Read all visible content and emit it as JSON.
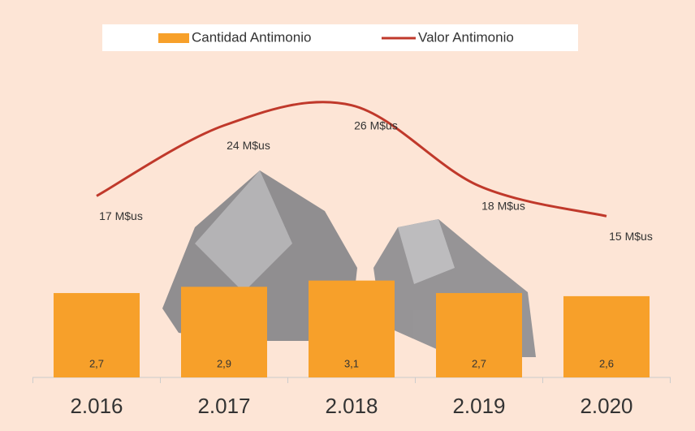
{
  "chart_data": {
    "type": "bar",
    "categories": [
      "2.016",
      "2.017",
      "2.018",
      "2.019",
      "2.020"
    ],
    "series": [
      {
        "name": "Cantidad Antimonio",
        "type": "bar",
        "color": "#f7a02a",
        "values": [
          2.7,
          2.9,
          3.1,
          2.7,
          2.6
        ],
        "value_labels": [
          "2,7",
          "2,9",
          "3,1",
          "2,7",
          "2,6"
        ]
      },
      {
        "name": "Valor Antimonio",
        "type": "line",
        "axis": "y2",
        "color": "#c0392b",
        "values": [
          17,
          24,
          26,
          18,
          15
        ],
        "value_labels": [
          "17 M$us",
          "24 M$us",
          "26 M$us",
          "18 M$us",
          "15 M$us"
        ]
      }
    ],
    "ylim": [
      0,
      10
    ],
    "y2lim": [
      -1,
      30
    ],
    "legend": "top",
    "grid": false
  }
}
